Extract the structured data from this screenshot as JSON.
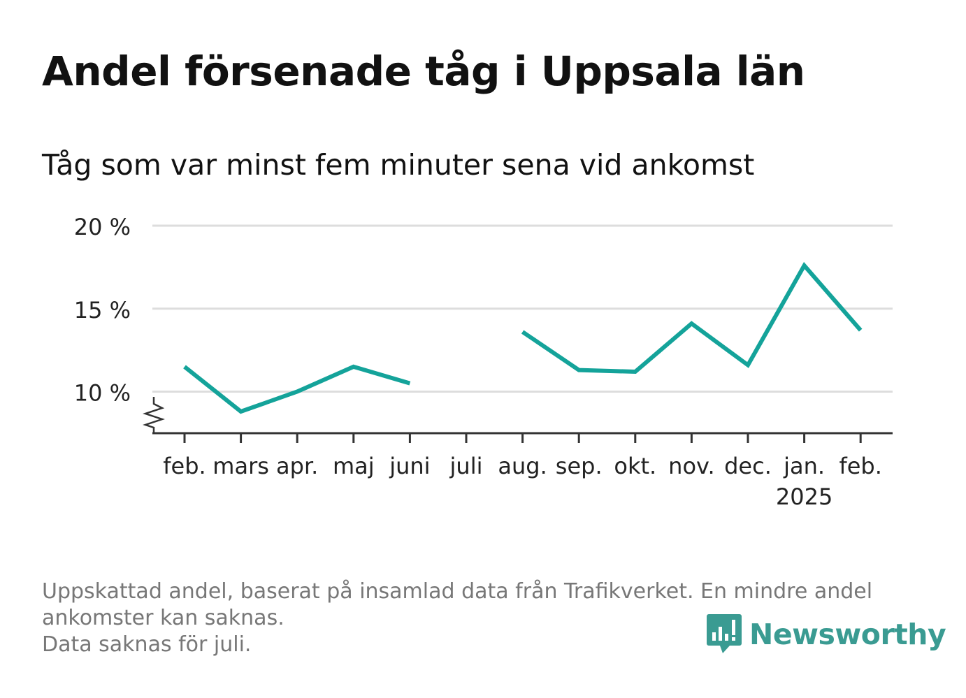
{
  "title": "Andel försenade tåg i Uppsala län",
  "subtitle": "Tåg som var minst fem minuter sena vid ankomst",
  "footer": {
    "line1": "Uppskattad andel, baserat på insamlad data från Trafikverket. En mindre andel",
    "line2": "ankomster kan saknas.",
    "line3": "Data saknas för juli."
  },
  "logo": {
    "text": "Newsworthy",
    "icon": "bar-chart-speech-bubble-icon",
    "color": "#3a9b92"
  },
  "colors": {
    "line": "#14a39a",
    "grid": "#dddddd",
    "axis": "#333333",
    "tick_label": "#222222"
  },
  "chart_data": {
    "type": "line",
    "categories": [
      "feb.",
      "mars",
      "apr.",
      "maj",
      "juni",
      "juli",
      "aug.",
      "sep.",
      "okt.",
      "nov.",
      "dec.",
      "jan.",
      "feb."
    ],
    "year_labels": [
      {
        "index": 11,
        "text": "2025"
      }
    ],
    "series": [
      {
        "values": [
          11.5,
          8.8,
          10.0,
          11.5,
          10.5,
          null,
          13.6,
          11.3,
          11.2,
          14.1,
          11.6,
          17.6,
          13.7
        ]
      }
    ],
    "y_ticks": [
      10,
      15,
      20
    ],
    "y_tick_labels": [
      "10 %",
      "15 %",
      "20 %"
    ],
    "ylim": [
      7.5,
      20
    ],
    "y_axis_break": true,
    "grid": true,
    "legend": "none"
  }
}
